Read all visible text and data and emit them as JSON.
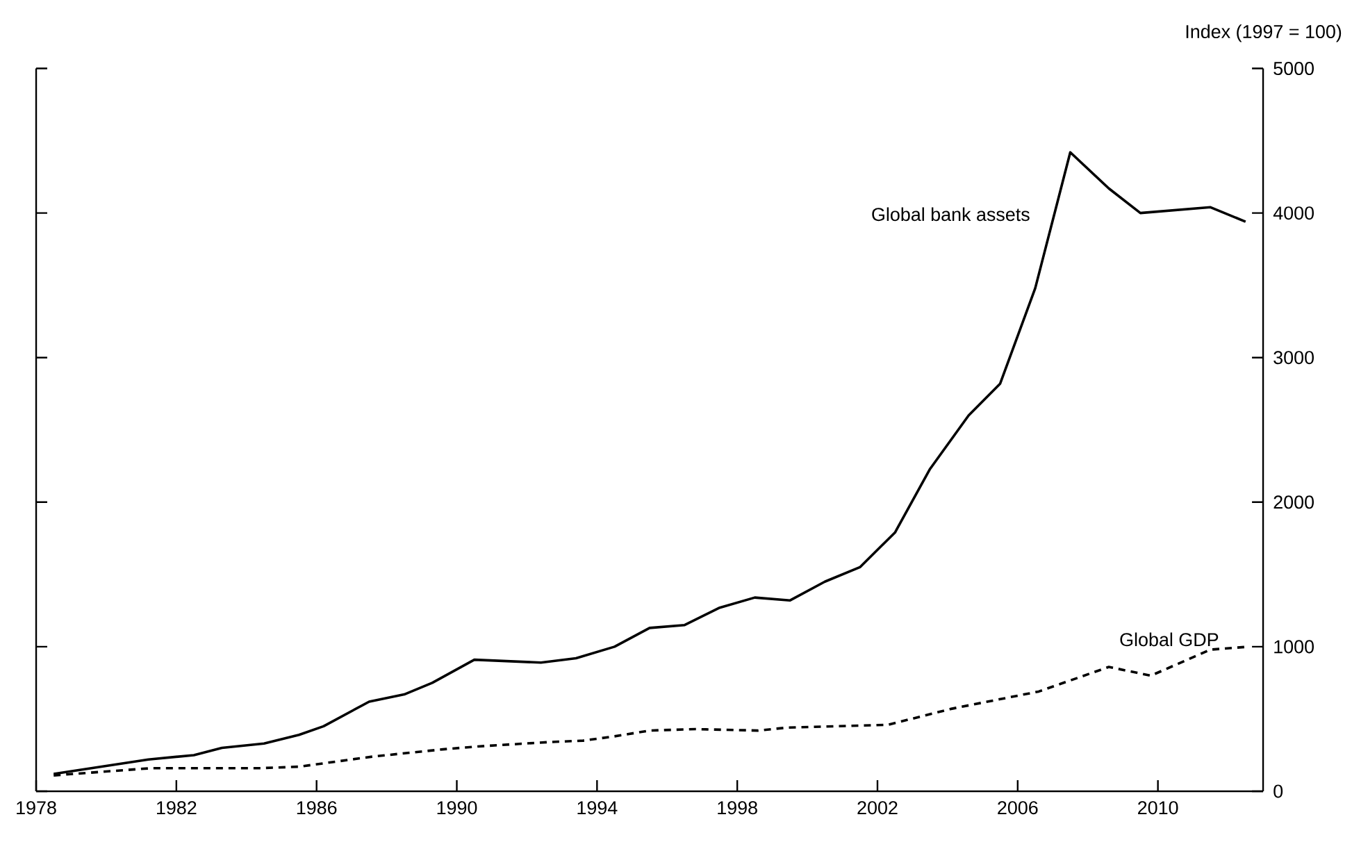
{
  "chart_data": {
    "type": "line",
    "ylabel": "Index (1997 = 100)",
    "xlim": [
      1978,
      2013
    ],
    "xticks": [
      1978,
      1982,
      1986,
      1990,
      1994,
      1998,
      2002,
      2006,
      2010
    ],
    "ylim": [
      0,
      5000
    ],
    "yticks": [
      0,
      1000,
      2000,
      3000,
      4000,
      5000
    ],
    "series": [
      {
        "name": "Global bank assets",
        "color": "#000000",
        "line_style": "solid",
        "x": [
          1978.5,
          1981.2,
          1982.5,
          1983.3,
          1984.5,
          1985.5,
          1986.2,
          1987.5,
          1988.5,
          1989.3,
          1990.5,
          1992.4,
          1993.4,
          1994.5,
          1995.5,
          1996.5,
          1997.5,
          1998.5,
          1999.5,
          2000.5,
          2001.5,
          2002.5,
          2003.5,
          2004.6,
          2005.5,
          2006.5,
          2007.5,
          2008.6,
          2009.5,
          2011.5,
          2012.5
        ],
        "values": [
          120,
          220,
          250,
          300,
          330,
          390,
          450,
          620,
          670,
          750,
          910,
          890,
          920,
          1000,
          1130,
          1150,
          1270,
          1340,
          1320,
          1450,
          1550,
          1790,
          2230,
          2600,
          2820,
          3480,
          4420,
          4170,
          4000,
          4040,
          3940
        ]
      },
      {
        "name": "Global GDP",
        "color": "#000000",
        "line_style": "dashed",
        "x": [
          1978.5,
          1981.3,
          1982.5,
          1984.4,
          1985.5,
          1987.6,
          1989.6,
          1990.6,
          1992.6,
          1993.6,
          1994.5,
          1995.5,
          1996.8,
          1998.6,
          1999.4,
          2002.3,
          2004.1,
          2006.6,
          2008.6,
          2009.8,
          2011.5,
          2012.6
        ],
        "values": [
          110,
          160,
          160,
          160,
          170,
          240,
          290,
          310,
          340,
          350,
          380,
          420,
          430,
          420,
          440,
          460,
          570,
          690,
          860,
          800,
          980,
          1000
        ]
      }
    ]
  }
}
